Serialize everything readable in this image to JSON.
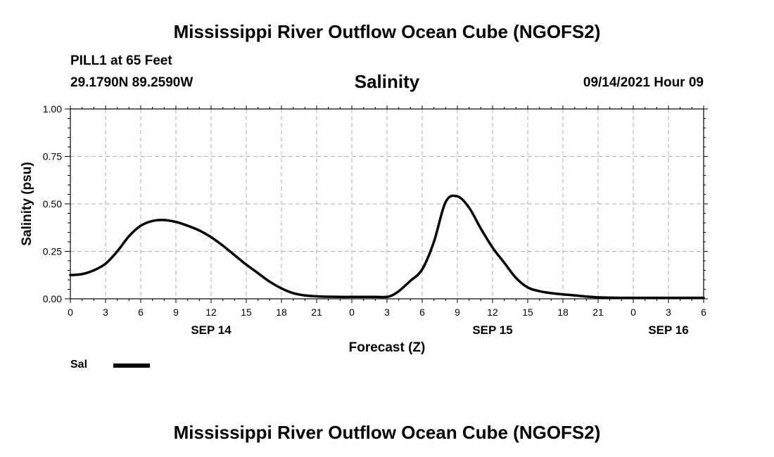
{
  "header": {
    "title": "Mississippi River Outflow Ocean Cube (NGOFS2)",
    "station": "PILL1 at 65 Feet",
    "coords": "29.1790N  89.2590W",
    "subtitle": "Salinity",
    "datetime": "09/14/2021 Hour 09"
  },
  "footer": {
    "title": "Mississippi River Outflow Ocean Cube (NGOFS2)"
  },
  "chart_data": {
    "type": "line",
    "title": "Salinity",
    "xlabel": "Forecast (Z)",
    "ylabel": "Salinity (psu)",
    "xlim": [
      0,
      54
    ],
    "ylim": [
      0,
      1
    ],
    "grid": true,
    "x_ticks": [
      0,
      3,
      6,
      9,
      12,
      15,
      18,
      21,
      24,
      27,
      30,
      33,
      36,
      39,
      42,
      45,
      48,
      51,
      54
    ],
    "x_tick_labels": [
      "0",
      "3",
      "6",
      "9",
      "12",
      "15",
      "18",
      "21",
      "0",
      "3",
      "6",
      "9",
      "12",
      "15",
      "18",
      "21",
      "0",
      "3",
      "6"
    ],
    "y_ticks": [
      0,
      0.25,
      0.5,
      0.75,
      1.0
    ],
    "y_tick_labels": [
      "0.00",
      "0.25",
      "0.50",
      "0.75",
      "1.00"
    ],
    "date_labels": [
      {
        "x": 12,
        "label": "SEP 14"
      },
      {
        "x": 36,
        "label": "SEP 15"
      },
      {
        "x": 51,
        "label": "SEP 16"
      }
    ],
    "legend": {
      "position": "bottom-left",
      "entries": [
        "Sal"
      ]
    },
    "series": [
      {
        "name": "Sal",
        "color": "#000000",
        "x": [
          0,
          1,
          2,
          3,
          4,
          5,
          6,
          7,
          8,
          9,
          10,
          11,
          12,
          13,
          14,
          15,
          16,
          17,
          18,
          19,
          20,
          21,
          22,
          23,
          24,
          25,
          26,
          27,
          27.5,
          28,
          29,
          30,
          31,
          32,
          33,
          34,
          35,
          36,
          37,
          38,
          39,
          40,
          41,
          42,
          43,
          44,
          45,
          46,
          47,
          48,
          49,
          50,
          51,
          52,
          53,
          54
        ],
        "values": [
          0.125,
          0.13,
          0.15,
          0.185,
          0.25,
          0.33,
          0.385,
          0.41,
          0.415,
          0.405,
          0.385,
          0.36,
          0.325,
          0.28,
          0.23,
          0.18,
          0.135,
          0.09,
          0.055,
          0.03,
          0.018,
          0.013,
          0.011,
          0.01,
          0.01,
          0.01,
          0.01,
          0.01,
          0.02,
          0.04,
          0.095,
          0.155,
          0.3,
          0.51,
          0.54,
          0.48,
          0.37,
          0.27,
          0.19,
          0.11,
          0.06,
          0.04,
          0.03,
          0.023,
          0.018,
          0.012,
          0.008,
          0.006,
          0.005,
          0.005,
          0.005,
          0.005,
          0.005,
          0.005,
          0.005,
          0.005
        ]
      }
    ]
  }
}
